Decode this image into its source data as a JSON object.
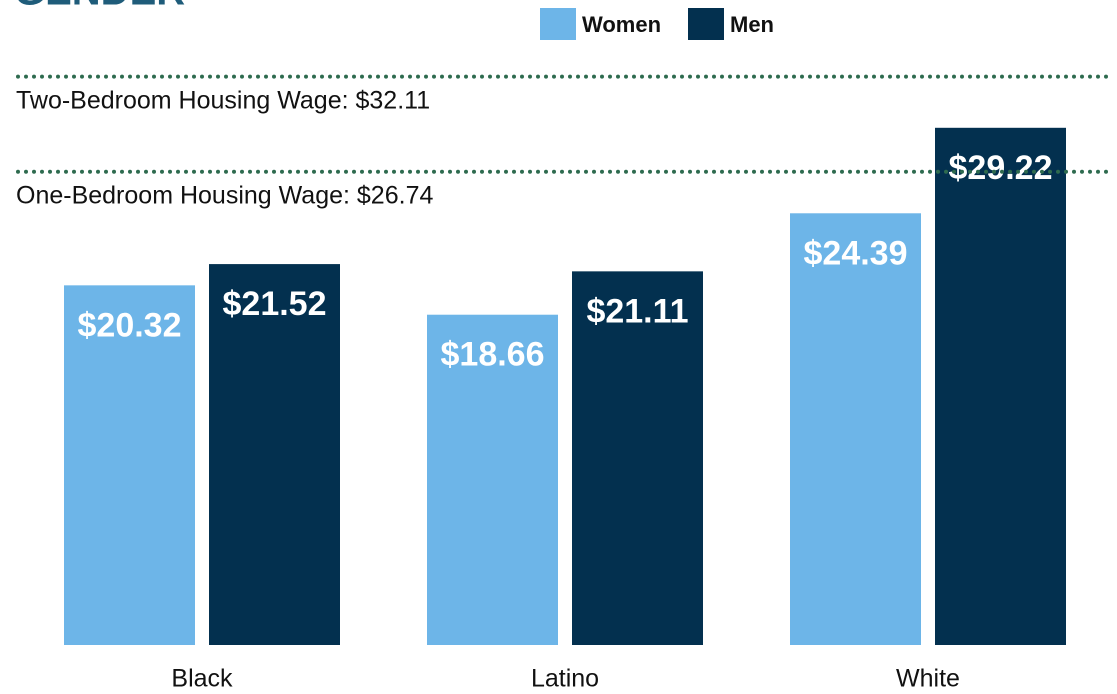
{
  "chart_data": {
    "type": "bar",
    "title": "GENDER",
    "categories": [
      "Black",
      "Latino",
      "White"
    ],
    "series": [
      {
        "name": "Women",
        "color": "#6db5e8",
        "values": [
          20.32,
          18.66,
          24.39
        ],
        "value_labels": [
          "$20.32",
          "$18.66",
          "$24.39"
        ]
      },
      {
        "name": "Men",
        "color": "#03304f",
        "values": [
          21.52,
          21.11,
          29.22
        ],
        "value_labels": [
          "$21.52",
          "$21.11",
          "$29.22"
        ]
      }
    ],
    "ylim": [
      0,
      36.44
    ],
    "reference_lines": [
      {
        "label": "Two-Bedroom Housing Wage: $32.11",
        "value": 32.11,
        "color": "#2e6b4f"
      },
      {
        "label": "One-Bedroom Housing Wage: $26.74",
        "value": 26.74,
        "color": "#2e6b4f"
      }
    ],
    "legend": "top"
  }
}
